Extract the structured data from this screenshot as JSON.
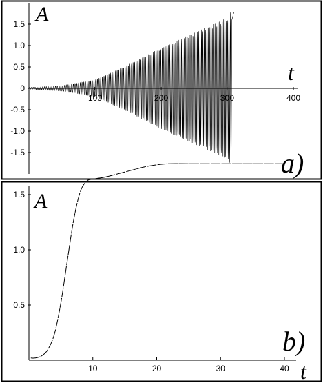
{
  "chart_data": [
    {
      "type": "line",
      "panel_label": "a)",
      "xlabel": "t",
      "ylabel": "A",
      "xlim": [
        0,
        410
      ],
      "ylim": [
        -1.85,
        1.85
      ],
      "x_ticks": [
        {
          "value": 100,
          "label": "100"
        },
        {
          "value": 200,
          "label": "200"
        },
        {
          "value": 300,
          "label": "300"
        },
        {
          "value": 400,
          "label": "400"
        }
      ],
      "y_ticks": [
        {
          "value": 1.5,
          "label": "1.5"
        },
        {
          "value": 1.0,
          "label": "1.0"
        },
        {
          "value": 0.5,
          "label": "0.5"
        },
        {
          "value": 0,
          "label": "0"
        },
        {
          "value": -0.5,
          "label": "-0.5"
        },
        {
          "value": -1.0,
          "label": "-1.0"
        },
        {
          "value": -1.5,
          "label": "-1.5"
        }
      ],
      "series": [
        {
          "description": "oscillation with growing envelope until capture near t=305, then constant",
          "envelope_points": [
            [
              0,
              0.02
            ],
            [
              50,
              0.06
            ],
            [
              100,
              0.2
            ],
            [
              150,
              0.55
            ],
            [
              200,
              0.95
            ],
            [
              250,
              1.3
            ],
            [
              300,
              1.65
            ],
            [
              305,
              1.78
            ]
          ],
          "final_value": 1.78,
          "capture_t": 306,
          "end_t": 400
        }
      ]
    },
    {
      "type": "line",
      "panel_label": "b)",
      "xlabel": "t",
      "ylabel": "A",
      "xlim": [
        0,
        41
      ],
      "ylim": [
        0,
        1.85
      ],
      "x_ticks": [
        {
          "value": 10,
          "label": "10"
        },
        {
          "value": 20,
          "label": "20"
        },
        {
          "value": 30,
          "label": "30"
        },
        {
          "value": 40,
          "label": "40"
        }
      ],
      "y_ticks": [
        {
          "value": 1.5,
          "label": "1.5"
        },
        {
          "value": 1.0,
          "label": "1.0"
        },
        {
          "value": 0.5,
          "label": "0.5"
        }
      ],
      "series": [
        {
          "x": [
            0.3,
            1,
            2,
            3,
            4,
            5,
            6,
            7,
            8,
            9,
            10,
            12,
            14,
            16,
            18,
            20,
            22,
            25,
            30,
            35,
            40
          ],
          "y": [
            0.02,
            0.02,
            0.04,
            0.1,
            0.24,
            0.52,
            0.9,
            1.27,
            1.52,
            1.62,
            1.64,
            1.66,
            1.69,
            1.72,
            1.75,
            1.77,
            1.78,
            1.78,
            1.78,
            1.78,
            1.78
          ]
        }
      ]
    }
  ]
}
